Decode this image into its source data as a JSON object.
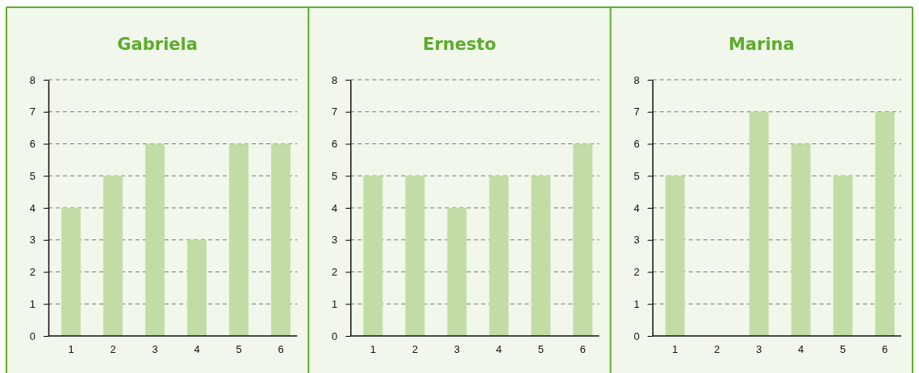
{
  "chart_data": [
    {
      "type": "bar",
      "title": "Gabriela",
      "categories": [
        "1",
        "2",
        "3",
        "4",
        "5",
        "6"
      ],
      "values": [
        4,
        5,
        6,
        3,
        6,
        6
      ],
      "color": "#c2dca6",
      "ylim": [
        0,
        8
      ],
      "yticks": [
        0,
        1,
        2,
        3,
        4,
        5,
        6,
        7,
        8
      ],
      "grid": "y"
    },
    {
      "type": "bar",
      "title": "Ernesto",
      "categories": [
        "1",
        "2",
        "3",
        "4",
        "5",
        "6"
      ],
      "values": [
        5,
        5,
        4,
        5,
        5,
        6
      ],
      "color": "#c2dca6",
      "ylim": [
        0,
        8
      ],
      "yticks": [
        0,
        1,
        2,
        3,
        4,
        5,
        6,
        7,
        8
      ],
      "grid": "y"
    },
    {
      "type": "bar",
      "title": "Marina",
      "categories": [
        "1",
        "2",
        "3",
        "4",
        "5",
        "6"
      ],
      "values": [
        5,
        0,
        7,
        6,
        5,
        7
      ],
      "color": "#c2dca6",
      "ylim": [
        0,
        8
      ],
      "yticks": [
        0,
        1,
        2,
        3,
        4,
        5,
        6,
        7,
        8
      ],
      "grid": "y"
    }
  ]
}
